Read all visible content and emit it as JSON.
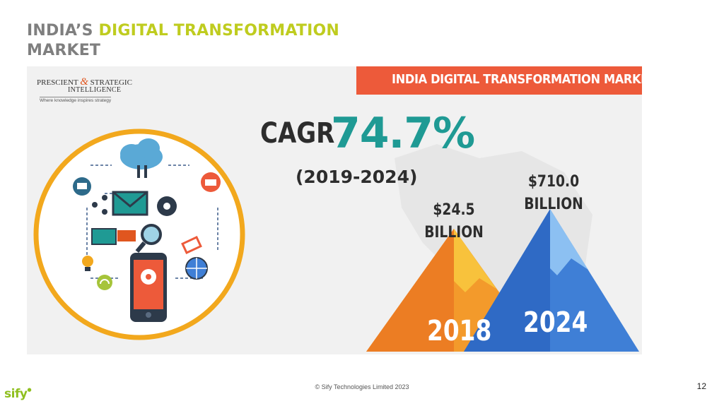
{
  "slide": {
    "title_part1": "INDIA’S ",
    "title_part2": "DIGITAL TRANSFORMATION",
    "title_part3": "MARKET",
    "footer": "© Sify Technologies Limited 2023",
    "page_number": "12",
    "brand": "sify"
  },
  "infographic": {
    "logo_line1_a": "PRESCIENT",
    "logo_amp": "&",
    "logo_line1_b": "STRATEGIC",
    "logo_line2": "INTELLIGENCE",
    "logo_tagline": "Where knowledge inspires strategy",
    "banner": "INDIA DIGITAL TRANSFORMATION MARKET",
    "cagr_label": "CAGR",
    "cagr_value": "74.7%",
    "period": "(2019-2024)",
    "value_2018_amount": "$24.5",
    "value_2018_unit": "BILLION",
    "value_2024_amount": "$710.0",
    "value_2024_unit": "BILLION",
    "year_2018": "2018",
    "year_2024": "2024"
  },
  "colors": {
    "title_gray": "#7f7f7f",
    "title_accent": "#bfcc1f",
    "banner": "#ed5a3a",
    "cagr": "#1f9a94",
    "mountain_2018": "#f39a2b",
    "mountain_2024": "#3f7fd6",
    "circle_ring": "#f2a81d"
  },
  "icons": [
    "cloud-icon",
    "envelope-icon",
    "gear-icon",
    "magnifier-icon",
    "smartphone-icon",
    "globe-icon",
    "shopping-basket-icon",
    "wifi-icon",
    "tag-icon",
    "chat-icon"
  ]
}
